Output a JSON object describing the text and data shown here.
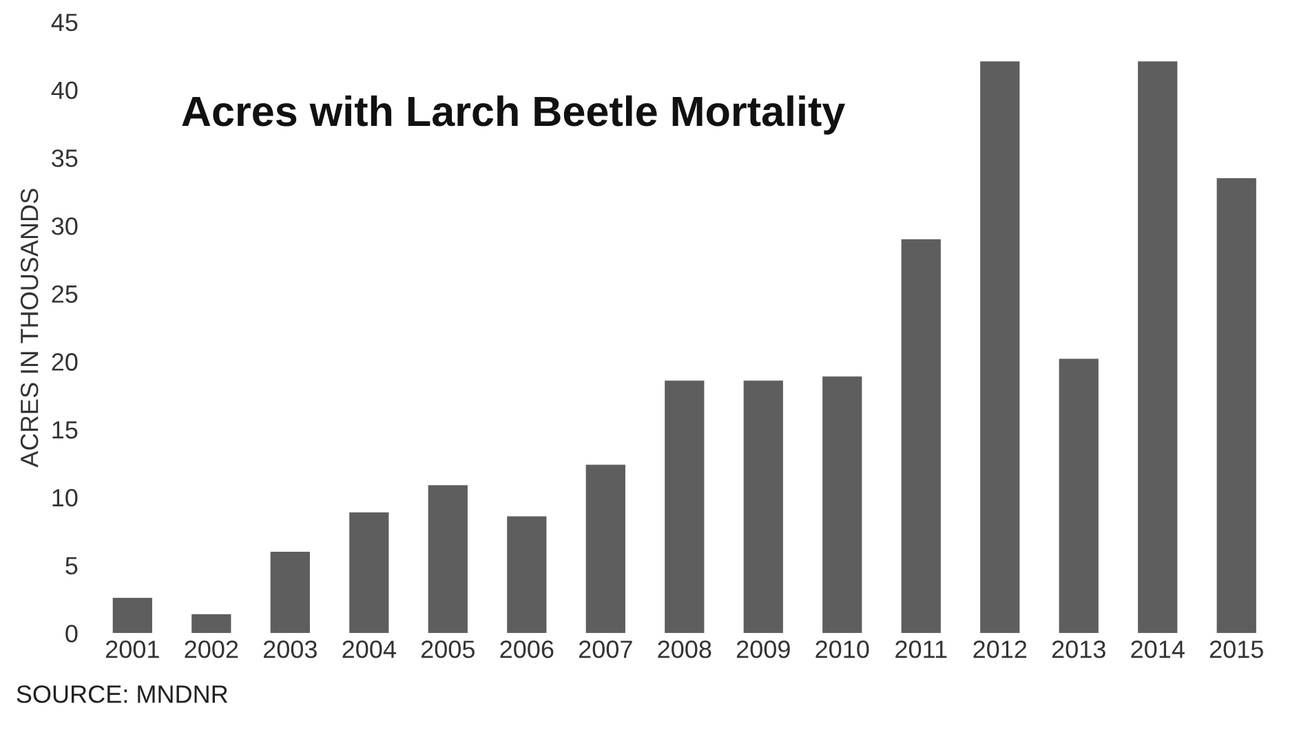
{
  "chart_data": {
    "type": "bar",
    "title": "Acres with Larch Beetle Mortality",
    "ylabel": "ACRES IN THOUSANDS",
    "categories": [
      "2001",
      "2002",
      "2003",
      "2004",
      "2005",
      "2006",
      "2007",
      "2008",
      "2009",
      "2010",
      "2011",
      "2012",
      "2013",
      "2014",
      "2015"
    ],
    "values": [
      2.6,
      1.4,
      6.0,
      8.9,
      10.9,
      8.6,
      12.4,
      18.6,
      18.6,
      18.9,
      29.0,
      42.1,
      20.2,
      42.1,
      33.5
    ],
    "color": "#5e5e5e",
    "ylim": [
      0,
      45
    ],
    "yticks": [
      0,
      5,
      10,
      15,
      20,
      25,
      30,
      35,
      40,
      45
    ],
    "grid": false,
    "annotations": [
      "SOURCE: MNDNR"
    ]
  }
}
